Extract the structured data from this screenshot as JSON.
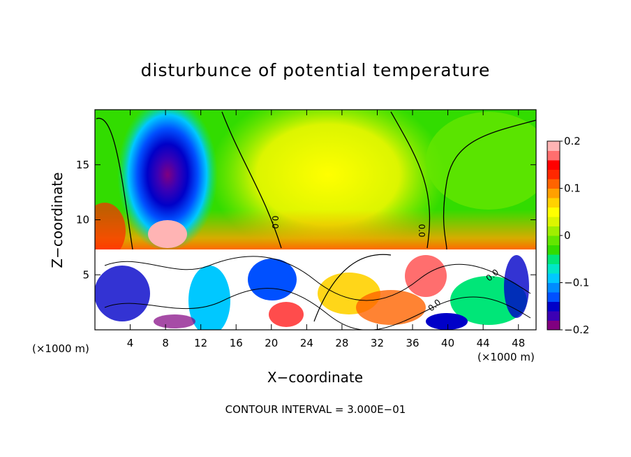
{
  "chart_data": {
    "type": "heatmap",
    "title": "disturbunce of potential temperature",
    "xlabel": "X−coordinate",
    "ylabel": "Z−coordinate",
    "x_unit_label": "(×1000 m)",
    "x_ticks": [
      "4",
      "8",
      "12",
      "16",
      "20",
      "24",
      "28",
      "32",
      "36",
      "40",
      "44",
      "48"
    ],
    "y_ticks": [
      "5",
      "10",
      "15"
    ],
    "xlim": [
      0,
      50
    ],
    "ylim": [
      0,
      20
    ],
    "colorbar": {
      "range": [
        -0.2,
        0.2
      ],
      "ticks": [
        "0.2",
        "0.1",
        "0",
        "−0.1",
        "−0.2"
      ],
      "colors": [
        "#800080",
        "#3c00b4",
        "#0000c8",
        "#0050ff",
        "#008cff",
        "#00c8ff",
        "#00e6c8",
        "#00e678",
        "#32dc00",
        "#64e600",
        "#a0ee00",
        "#dcf500",
        "#ffff00",
        "#ffd200",
        "#ffa000",
        "#ff6400",
        "#ff2800",
        "#ff0000",
        "#ff6e6e",
        "#ffb4b4"
      ]
    },
    "footnote": "CONTOUR INTERVAL = 3.000E−01",
    "contour_interval": 0.3,
    "contour_labels": [
      "0.0",
      "0.0",
      "0.0",
      "0.0"
    ],
    "grid": false,
    "legend": "colorbar-right"
  }
}
